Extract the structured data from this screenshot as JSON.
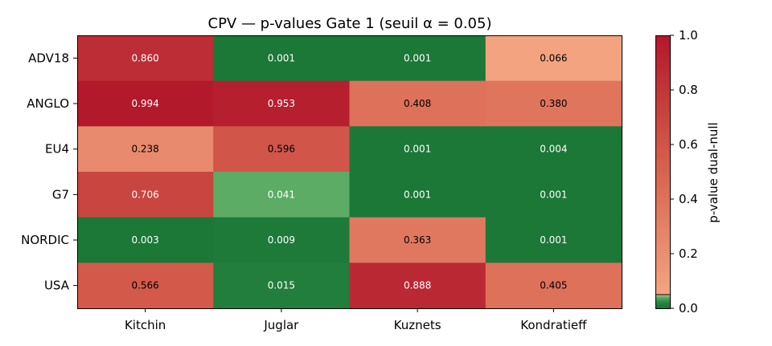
{
  "chart_data": {
    "type": "heatmap",
    "title": "CPV — p-values Gate 1 (seuil α = 0.05)",
    "xlabel": "",
    "ylabel": "",
    "columns": [
      "Kitchin",
      "Juglar",
      "Kuznets",
      "Kondratieff"
    ],
    "rows": [
      "ADV18",
      "ANGLO",
      "EU4",
      "G7",
      "NORDIC",
      "USA"
    ],
    "values": [
      [
        0.86,
        0.001,
        0.001,
        0.066
      ],
      [
        0.994,
        0.953,
        0.408,
        0.38
      ],
      [
        0.238,
        0.596,
        0.001,
        0.004
      ],
      [
        0.706,
        0.041,
        0.001,
        0.001
      ],
      [
        0.003,
        0.009,
        0.363,
        0.001
      ],
      [
        0.566,
        0.015,
        0.888,
        0.405
      ]
    ],
    "value_labels": [
      [
        "0.860",
        "0.001",
        "0.001",
        "0.066"
      ],
      [
        "0.994",
        "0.953",
        "0.408",
        "0.380"
      ],
      [
        "0.238",
        "0.596",
        "0.001",
        "0.004"
      ],
      [
        "0.706",
        "0.041",
        "0.001",
        "0.001"
      ],
      [
        "0.003",
        "0.009",
        "0.363",
        "0.001"
      ],
      [
        "0.566",
        "0.015",
        "0.888",
        "0.405"
      ]
    ],
    "threshold": 0.05,
    "colorbar": {
      "label": "p-value dual-null",
      "range": [
        0.0,
        1.0
      ],
      "ticks": [
        0.0,
        0.2,
        0.4,
        0.6,
        0.8,
        1.0
      ],
      "tick_labels": [
        "0.0",
        "0.2",
        "0.4",
        "0.6",
        "0.8",
        "1.0"
      ],
      "low_colors": [
        "#1b7837",
        "#7fc97f"
      ],
      "high_colors": [
        "#f4a582",
        "#d6604d",
        "#b2182b"
      ]
    }
  }
}
